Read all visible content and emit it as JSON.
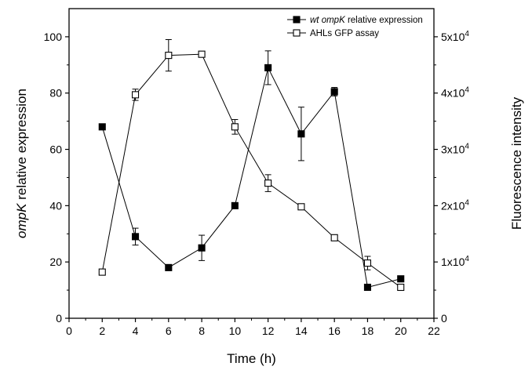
{
  "chart_data": {
    "type": "line",
    "xlabel": "Time (h)",
    "ylabel_left": {
      "italic": "ompK",
      "rest": " relative expression"
    },
    "ylabel_right": "Fluorescence intensity",
    "xlim": [
      0,
      22
    ],
    "ylim_left": [
      0,
      110
    ],
    "ylim_right": [
      0,
      55000
    ],
    "x_ticks": [
      0,
      2,
      4,
      6,
      8,
      10,
      12,
      14,
      16,
      18,
      20,
      22
    ],
    "y_left_ticks": [
      0,
      20,
      40,
      60,
      80,
      100
    ],
    "y_right_ticks": [
      {
        "value": 0,
        "label": "0"
      },
      {
        "value": 10000,
        "mant": "1x10",
        "exp": "4"
      },
      {
        "value": 20000,
        "mant": "2x10",
        "exp": "4"
      },
      {
        "value": 30000,
        "mant": "3x10",
        "exp": "4"
      },
      {
        "value": 40000,
        "mant": "4x10",
        "exp": "4"
      },
      {
        "value": 50000,
        "mant": "5x10",
        "exp": "4"
      }
    ],
    "legend_position": "top-right",
    "series": [
      {
        "name": "wt ompK relative expression",
        "name_parts": [
          {
            "t": "wt ompK",
            "italic": true
          },
          {
            "t": " relative expression",
            "italic": false
          }
        ],
        "axis": "left",
        "marker": "filled-square",
        "color": "#000000",
        "x": [
          2,
          4,
          6,
          8,
          10,
          12,
          14,
          16,
          18,
          20
        ],
        "y": [
          68,
          29,
          18,
          25,
          40,
          89,
          65.5,
          80.5,
          11,
          14
        ],
        "err": [
          0,
          3,
          0,
          4.5,
          0,
          6,
          9.5,
          1.5,
          1,
          0
        ]
      },
      {
        "name": "AHLs GFP assay",
        "name_parts": [
          {
            "t": "AHLs GFP assay",
            "italic": false
          }
        ],
        "axis": "right",
        "marker": "open-square",
        "color": "#000000",
        "x": [
          2,
          4,
          6,
          8,
          10,
          12,
          14,
          16,
          18,
          20
        ],
        "y": [
          8200,
          39700,
          46700,
          46900,
          34000,
          24000,
          19800,
          14300,
          9800,
          5500
        ],
        "err": [
          0,
          1000,
          2800,
          0,
          1300,
          1500,
          0,
          0,
          1200,
          0
        ]
      }
    ]
  }
}
